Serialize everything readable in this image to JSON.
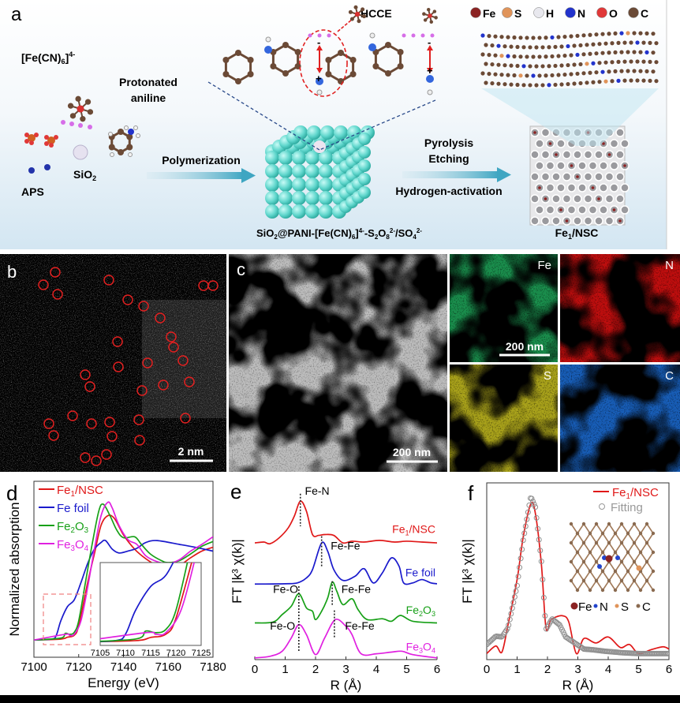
{
  "panel_a": {
    "letter": "a",
    "ferrocyanide": [
      "[Fe(CN)",
      "6",
      "]",
      "4-"
    ],
    "protonated": "Protonated",
    "aniline": "aniline",
    "aps": "APS",
    "sio2": [
      "SiO",
      "2"
    ],
    "polymerization": "Polymerization",
    "hcce": "HCCE",
    "plus": "+",
    "minus": "-",
    "composite_caption": [
      "SiO",
      "2",
      "@PANI-[Fe(CN)",
      "6",
      "]",
      "4-",
      "-S",
      "2",
      "O",
      "8",
      "2-",
      "/SO",
      "4",
      "2-"
    ],
    "pyrolysis": "Pyrolysis",
    "etching": "Etching",
    "hydrogen_activation": "Hydrogen-activation",
    "product": [
      "Fe",
      "1",
      "/NSC"
    ],
    "atom_legend": [
      {
        "label": "Fe",
        "color": "#8b2323"
      },
      {
        "label": "S",
        "color": "#e0945a"
      },
      {
        "label": "H",
        "color": "#e8e8ee"
      },
      {
        "label": "N",
        "color": "#2233cc"
      },
      {
        "label": "O",
        "color": "#e03838"
      },
      {
        "label": "C",
        "color": "#6b4a36"
      }
    ]
  },
  "panel_b": {
    "letter": "b",
    "scale_bar": "2 nm"
  },
  "panel_c": {
    "letter": "c",
    "scale_bar": "200 nm",
    "maps": [
      {
        "element": "Fe",
        "color": "#1fa85a"
      },
      {
        "element": "N",
        "color": "#e01010"
      },
      {
        "element": "S",
        "color": "#c8c020"
      },
      {
        "element": "C",
        "color": "#1c6fd8"
      }
    ],
    "map_scale_bar": "200 nm"
  },
  "chart_data": [
    {
      "panel": "d",
      "type": "line",
      "xlabel": "Energy (eV)",
      "ylabel": "Normalized absorption",
      "xlim": [
        7100,
        7180
      ],
      "ylim": [
        -0.18,
        1.66
      ],
      "xticks": [
        7100,
        7120,
        7140,
        7160,
        7180
      ],
      "grid": false,
      "legend_placement": "top-left",
      "series": [
        {
          "name": [
            "Fe",
            "1",
            "/NSC"
          ],
          "color": "#e01818",
          "x": [
            7100,
            7112,
            7115,
            7118,
            7120,
            7124,
            7127,
            7130,
            7133,
            7136,
            7140,
            7145,
            7150,
            7155,
            7160,
            7165,
            7170,
            7175,
            7180
          ],
          "y": [
            0,
            0.01,
            0.03,
            0.05,
            0.15,
            0.6,
            0.9,
            1.2,
            1.3,
            1.27,
            1.1,
            0.95,
            0.85,
            0.78,
            0.75,
            0.78,
            0.86,
            0.93,
            0.97
          ]
        },
        {
          "name": [
            "Fe foil"
          ],
          "color": "#1a1acc",
          "x": [
            7100,
            7108,
            7110,
            7112,
            7115,
            7118,
            7121,
            7124,
            7127,
            7130,
            7132,
            7135,
            7138,
            7142,
            7146,
            7150,
            7155,
            7165,
            7172,
            7180
          ],
          "y": [
            0,
            0.01,
            0.05,
            0.2,
            0.35,
            0.42,
            0.6,
            0.8,
            0.95,
            1.02,
            1.04,
            0.95,
            0.91,
            0.93,
            0.96,
            1.02,
            1.04,
            1.0,
            0.97,
            0.93
          ]
        },
        {
          "name": [
            "Fe",
            "2",
            "O",
            "3"
          ],
          "color": "#17a017",
          "x": [
            7100,
            7112,
            7114,
            7116,
            7118,
            7120,
            7123,
            7126,
            7129,
            7131,
            7134,
            7137,
            7140,
            7145,
            7148,
            7152,
            7157,
            7160,
            7165,
            7170,
            7175,
            7180
          ],
          "y": [
            0,
            0.02,
            0.07,
            0.06,
            0.08,
            0.2,
            0.6,
            1.0,
            1.35,
            1.42,
            1.3,
            1.15,
            1.07,
            1.08,
            1.0,
            0.9,
            0.83,
            0.81,
            0.83,
            0.9,
            0.98,
            1.03
          ]
        },
        {
          "name": [
            "Fe",
            "3",
            "O",
            "4"
          ],
          "color": "#e020e0",
          "x": [
            7100,
            7114,
            7116,
            7118,
            7121,
            7124,
            7127,
            7130,
            7133,
            7135,
            7138,
            7142,
            7146,
            7150,
            7155,
            7160,
            7165,
            7170,
            7175,
            7180
          ],
          "y": [
            0,
            0.06,
            0.05,
            0.06,
            0.2,
            0.55,
            0.95,
            1.3,
            1.44,
            1.38,
            1.2,
            1.05,
            1.0,
            0.88,
            0.82,
            0.8,
            0.84,
            0.93,
            1.0,
            1.08
          ]
        }
      ],
      "inset": {
        "xlim": [
          7105,
          7125
        ],
        "ylim": [
          -0.02,
          0.5
        ],
        "xticks": [
          7105,
          7110,
          7115,
          7120,
          7125
        ]
      }
    },
    {
      "panel": "e",
      "type": "line",
      "xlabel": "R (Å)",
      "ylabel": "FT |k³ χ(k)|",
      "xlim": [
        0,
        6
      ],
      "ylim": [
        0,
        10.6
      ],
      "xticks": [
        0,
        1,
        2,
        3,
        4,
        5,
        6
      ],
      "grid": false,
      "series": [
        {
          "name": [
            "Fe",
            "1",
            "/NSC"
          ],
          "color": "#e01818",
          "x": [
            0,
            0.3,
            0.5,
            0.8,
            1.1,
            1.3,
            1.5,
            1.7,
            1.9,
            2.1,
            2.3,
            2.6,
            2.9,
            3.2,
            3.6,
            4.1,
            4.6,
            5,
            5.5,
            6
          ],
          "y": [
            7.0,
            7.05,
            6.95,
            7.3,
            7.9,
            8.6,
            9.5,
            8.9,
            7.5,
            7.45,
            7.5,
            7.45,
            7.0,
            7.1,
            7.05,
            7.15,
            7.05,
            7.1,
            7.05,
            7.0
          ]
        },
        {
          "name": [
            "Fe foil"
          ],
          "color": "#1a1acc",
          "x": [
            0,
            1.0,
            1.4,
            1.7,
            1.9,
            2.2,
            2.4,
            2.6,
            2.9,
            3.3,
            3.6,
            3.9,
            4.2,
            4.5,
            4.75,
            4.9,
            5.2,
            5.5,
            5.8,
            6
          ],
          "y": [
            4.53,
            4.55,
            4.6,
            4.9,
            5.4,
            7.0,
            6.5,
            5.4,
            4.75,
            5.0,
            5.45,
            4.6,
            5.2,
            6.1,
            5.6,
            4.6,
            4.6,
            4.8,
            4.6,
            4.55
          ]
        },
        {
          "name": [
            "Fe",
            "2",
            "O",
            "3"
          ],
          "color": "#17a017",
          "x": [
            0,
            0.6,
            0.9,
            1.2,
            1.45,
            1.7,
            1.9,
            2.0,
            2.2,
            2.4,
            2.55,
            2.7,
            2.9,
            3.2,
            3.4,
            3.7,
            4.2,
            4.5,
            4.8,
            5.2,
            6
          ],
          "y": [
            2.2,
            2.25,
            2.7,
            3.2,
            3.95,
            3.1,
            2.9,
            2.4,
            2.9,
            3.7,
            4.65,
            4.1,
            3.3,
            3.65,
            3.0,
            2.4,
            2.45,
            2.3,
            2.65,
            2.3,
            2.2
          ]
        },
        {
          "name": [
            "Fe",
            "3",
            "O",
            "4"
          ],
          "color": "#e020e0",
          "x": [
            0,
            0.5,
            0.9,
            1.2,
            1.45,
            1.7,
            2.0,
            2.3,
            2.65,
            3.0,
            3.2,
            3.5,
            4,
            4.5,
            4.85,
            5.2,
            6
          ],
          "y": [
            0.1,
            0.2,
            0.5,
            1.3,
            2.1,
            1.5,
            0.3,
            1.3,
            2.4,
            2.0,
            1.5,
            0.35,
            0.35,
            0.45,
            0.5,
            0.3,
            0.1
          ]
        }
      ],
      "annotations": [
        {
          "text": "Fe-N",
          "series": 0,
          "x": 1.5
        },
        {
          "text": "Fe-Fe",
          "series": 1,
          "x": 2.2
        },
        {
          "text": "Fe-O",
          "series": 2,
          "x": 1.45
        },
        {
          "text": "Fe-Fe",
          "series": 2,
          "x": 2.55
        },
        {
          "text": "Fe-O",
          "series": 3,
          "x": 1.45
        },
        {
          "text": "Fe-Fe",
          "series": 3,
          "x": 2.62
        }
      ]
    },
    {
      "panel": "f",
      "type": "line",
      "xlabel": "R (Å)",
      "ylabel": "FT |k³ χ(k)|",
      "xlim": [
        0,
        6
      ],
      "ylim": [
        -0.3,
        11.4
      ],
      "xticks": [
        0,
        1,
        2,
        3,
        4,
        5,
        6
      ],
      "grid": false,
      "legend_placement": "top-right",
      "series": [
        {
          "name": [
            "Fe",
            "1",
            "/NSC"
          ],
          "color": "#e01818",
          "style": "line",
          "x": [
            0,
            0.3,
            0.5,
            0.7,
            1.0,
            1.2,
            1.45,
            1.6,
            1.8,
            1.95,
            2.1,
            2.25,
            2.5,
            2.7,
            2.95,
            3.2,
            3.6,
            4.0,
            4.4,
            4.7,
            5.0,
            5.4,
            5.8,
            6
          ],
          "y": [
            0.1,
            0.6,
            0.2,
            2.0,
            5.0,
            7.8,
            10.0,
            9.4,
            6.0,
            1.8,
            2.3,
            2.5,
            2.6,
            2.2,
            0.1,
            1.1,
            0.8,
            1.2,
            0.5,
            0.7,
            0.1,
            0.35,
            0.55,
            0.4
          ]
        },
        {
          "name": [
            "Fitting"
          ],
          "color": "#909090",
          "style": "circles",
          "x": [
            0,
            0.3,
            0.5,
            0.7,
            1.0,
            1.2,
            1.45,
            1.6,
            1.8,
            1.95,
            2.15,
            2.4,
            2.6,
            2.9,
            3.2,
            3.5,
            3.9,
            4.5,
            5,
            6
          ],
          "y": [
            0.7,
            1.25,
            1.2,
            1.8,
            4.6,
            7.6,
            10.5,
            9.8,
            6.2,
            1.7,
            2.4,
            2.0,
            1.2,
            0.8,
            0.4,
            0.35,
            0.25,
            0.15,
            0.1,
            0.1
          ]
        }
      ],
      "inset_legend": [
        {
          "label": "Fe",
          "color": "#8b2323"
        },
        {
          "label": "N",
          "color": "#2244cc"
        },
        {
          "label": "S",
          "color": "#e0945a"
        },
        {
          "label": "C",
          "color": "#8a6a50"
        }
      ]
    }
  ]
}
